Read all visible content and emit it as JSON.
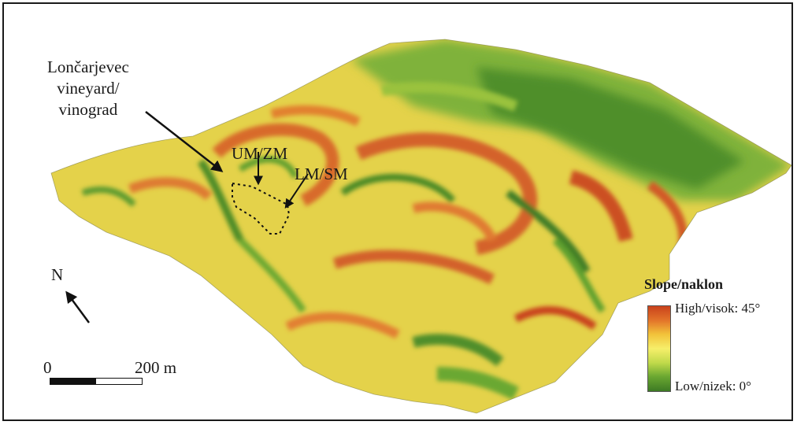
{
  "annotations": {
    "site_name_lines": [
      "Lončarjevec",
      "vineyard/",
      "vinograd"
    ],
    "upper_marker": "UM/ZM",
    "lower_marker": "LM/SM"
  },
  "north": {
    "label": "N"
  },
  "scale": {
    "start": "0",
    "end": "200 m"
  },
  "legend": {
    "title": "Slope/naklon",
    "high": "High/visok: 45°",
    "low": "Low/nizek: 0°",
    "colors": [
      "#c9421c",
      "#e3752a",
      "#f2c23a",
      "#f6ef6a",
      "#bfd94a",
      "#6aa731",
      "#3d7a24"
    ]
  }
}
